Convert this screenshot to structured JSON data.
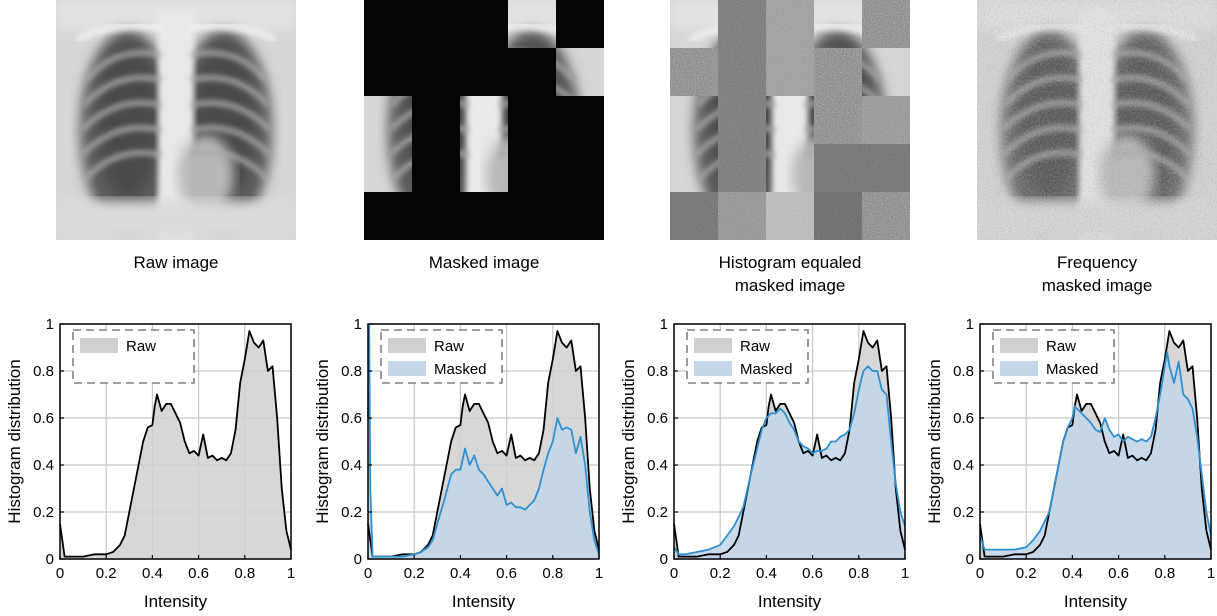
{
  "captions": {
    "raw": "Raw image",
    "masked": "Masked image",
    "histeq_line1": "Histogram equaled",
    "histeq_line2": "masked image",
    "freq_line1": "Frequency",
    "freq_line2": "masked image"
  },
  "colors": {
    "raw_fill": "#d0d0d0",
    "raw_line": "#000000",
    "masked_fill": "#c3d7e8",
    "masked_line": "#2f8fcf",
    "grid": "#c8c8c8"
  },
  "legend": {
    "raw": "Raw",
    "masked": "Masked"
  },
  "chart_data": [
    {
      "type": "area",
      "title": "",
      "xlabel": "Intensity",
      "ylabel": "Histogram distribution",
      "xlim": [
        0,
        1
      ],
      "ylim": [
        0,
        1
      ],
      "xticks": [
        "0",
        "0.2",
        "0.4",
        "0.6",
        "0.8",
        "1"
      ],
      "yticks": [
        "0",
        "0.2",
        "0.4",
        "0.6",
        "0.8",
        "1"
      ],
      "grid": true,
      "legend_position": "top-left",
      "series": [
        {
          "name": "Raw",
          "x": [
            0,
            0.02,
            0.05,
            0.1,
            0.15,
            0.2,
            0.23,
            0.26,
            0.28,
            0.3,
            0.33,
            0.36,
            0.38,
            0.4,
            0.41,
            0.42,
            0.44,
            0.46,
            0.48,
            0.5,
            0.52,
            0.54,
            0.56,
            0.58,
            0.6,
            0.62,
            0.64,
            0.66,
            0.68,
            0.7,
            0.72,
            0.74,
            0.76,
            0.78,
            0.8,
            0.82,
            0.84,
            0.86,
            0.88,
            0.9,
            0.92,
            0.94,
            0.96,
            0.98,
            1.0
          ],
          "y": [
            0.15,
            0.01,
            0.01,
            0.01,
            0.02,
            0.02,
            0.03,
            0.06,
            0.1,
            0.2,
            0.35,
            0.5,
            0.56,
            0.57,
            0.65,
            0.7,
            0.63,
            0.66,
            0.66,
            0.62,
            0.58,
            0.5,
            0.45,
            0.46,
            0.44,
            0.53,
            0.43,
            0.44,
            0.42,
            0.43,
            0.42,
            0.45,
            0.55,
            0.75,
            0.85,
            0.97,
            0.92,
            0.9,
            0.93,
            0.8,
            0.82,
            0.6,
            0.3,
            0.12,
            0.04
          ]
        }
      ]
    },
    {
      "type": "area",
      "title": "",
      "xlabel": "Intensity",
      "ylabel": "Histogram distribution",
      "xlim": [
        0,
        1
      ],
      "ylim": [
        0,
        1
      ],
      "xticks": [
        "0",
        "0.2",
        "0.4",
        "0.6",
        "0.8",
        "1"
      ],
      "yticks": [
        "0",
        "0.2",
        "0.4",
        "0.6",
        "0.8",
        "1"
      ],
      "grid": true,
      "legend_position": "top-left",
      "series": [
        {
          "name": "Raw",
          "x": [
            0,
            0.02,
            0.05,
            0.1,
            0.15,
            0.2,
            0.23,
            0.26,
            0.28,
            0.3,
            0.33,
            0.36,
            0.38,
            0.4,
            0.41,
            0.42,
            0.44,
            0.46,
            0.48,
            0.5,
            0.52,
            0.54,
            0.56,
            0.58,
            0.6,
            0.62,
            0.64,
            0.66,
            0.68,
            0.7,
            0.72,
            0.74,
            0.76,
            0.78,
            0.8,
            0.82,
            0.84,
            0.86,
            0.88,
            0.9,
            0.92,
            0.94,
            0.96,
            0.98,
            1.0
          ],
          "y": [
            0.15,
            0.01,
            0.01,
            0.01,
            0.02,
            0.02,
            0.03,
            0.06,
            0.1,
            0.2,
            0.35,
            0.5,
            0.56,
            0.57,
            0.65,
            0.7,
            0.63,
            0.66,
            0.66,
            0.62,
            0.58,
            0.5,
            0.45,
            0.46,
            0.44,
            0.53,
            0.43,
            0.44,
            0.42,
            0.43,
            0.42,
            0.45,
            0.55,
            0.75,
            0.85,
            0.97,
            0.92,
            0.9,
            0.93,
            0.8,
            0.82,
            0.6,
            0.3,
            0.12,
            0.04
          ]
        },
        {
          "name": "Masked",
          "x": [
            0,
            0.005,
            0.01,
            0.02,
            0.05,
            0.1,
            0.15,
            0.2,
            0.23,
            0.26,
            0.28,
            0.3,
            0.33,
            0.36,
            0.38,
            0.4,
            0.42,
            0.44,
            0.46,
            0.48,
            0.5,
            0.52,
            0.54,
            0.56,
            0.58,
            0.6,
            0.62,
            0.64,
            0.66,
            0.68,
            0.7,
            0.72,
            0.74,
            0.76,
            0.78,
            0.8,
            0.82,
            0.84,
            0.86,
            0.88,
            0.9,
            0.92,
            0.94,
            0.96,
            0.98,
            1.0
          ],
          "y": [
            0.6,
            1.0,
            0.3,
            0.01,
            0.01,
            0.01,
            0.01,
            0.02,
            0.03,
            0.05,
            0.08,
            0.15,
            0.25,
            0.36,
            0.38,
            0.38,
            0.47,
            0.4,
            0.44,
            0.38,
            0.36,
            0.33,
            0.3,
            0.27,
            0.3,
            0.23,
            0.24,
            0.22,
            0.22,
            0.21,
            0.23,
            0.25,
            0.3,
            0.38,
            0.45,
            0.5,
            0.6,
            0.55,
            0.56,
            0.55,
            0.45,
            0.52,
            0.4,
            0.2,
            0.08,
            0.02
          ]
        }
      ]
    },
    {
      "type": "area",
      "title": "",
      "xlabel": "Intensity",
      "ylabel": "Histogram distribution",
      "xlim": [
        0,
        1
      ],
      "ylim": [
        0,
        1
      ],
      "xticks": [
        "0",
        "0.2",
        "0.4",
        "0.6",
        "0.8",
        "1"
      ],
      "yticks": [
        "0",
        "0.2",
        "0.4",
        "0.6",
        "0.8",
        "1"
      ],
      "grid": true,
      "legend_position": "top-left",
      "series": [
        {
          "name": "Raw",
          "x": [
            0,
            0.02,
            0.05,
            0.1,
            0.15,
            0.2,
            0.23,
            0.26,
            0.28,
            0.3,
            0.33,
            0.36,
            0.38,
            0.4,
            0.41,
            0.42,
            0.44,
            0.46,
            0.48,
            0.5,
            0.52,
            0.54,
            0.56,
            0.58,
            0.6,
            0.62,
            0.64,
            0.66,
            0.68,
            0.7,
            0.72,
            0.74,
            0.76,
            0.78,
            0.8,
            0.82,
            0.84,
            0.86,
            0.88,
            0.9,
            0.92,
            0.94,
            0.96,
            0.98,
            1.0
          ],
          "y": [
            0.15,
            0.01,
            0.01,
            0.01,
            0.02,
            0.02,
            0.03,
            0.06,
            0.1,
            0.2,
            0.35,
            0.5,
            0.56,
            0.57,
            0.65,
            0.7,
            0.63,
            0.66,
            0.66,
            0.62,
            0.58,
            0.5,
            0.45,
            0.46,
            0.44,
            0.53,
            0.43,
            0.44,
            0.42,
            0.43,
            0.42,
            0.45,
            0.55,
            0.75,
            0.85,
            0.97,
            0.92,
            0.9,
            0.93,
            0.8,
            0.82,
            0.6,
            0.3,
            0.12,
            0.04
          ]
        },
        {
          "name": "Masked",
          "x": [
            0,
            0.02,
            0.05,
            0.1,
            0.15,
            0.2,
            0.23,
            0.26,
            0.3,
            0.33,
            0.36,
            0.38,
            0.4,
            0.42,
            0.44,
            0.46,
            0.48,
            0.5,
            0.52,
            0.54,
            0.56,
            0.58,
            0.6,
            0.62,
            0.64,
            0.66,
            0.68,
            0.7,
            0.72,
            0.74,
            0.76,
            0.78,
            0.8,
            0.82,
            0.84,
            0.86,
            0.88,
            0.9,
            0.92,
            0.94,
            0.96,
            0.98,
            1.0
          ],
          "y": [
            0.05,
            0.02,
            0.02,
            0.03,
            0.04,
            0.06,
            0.1,
            0.14,
            0.22,
            0.35,
            0.47,
            0.55,
            0.6,
            0.62,
            0.62,
            0.64,
            0.62,
            0.58,
            0.55,
            0.5,
            0.48,
            0.47,
            0.45,
            0.46,
            0.46,
            0.47,
            0.5,
            0.5,
            0.52,
            0.53,
            0.55,
            0.62,
            0.72,
            0.8,
            0.82,
            0.8,
            0.8,
            0.72,
            0.7,
            0.5,
            0.32,
            0.2,
            0.14
          ]
        }
      ]
    },
    {
      "type": "area",
      "title": "",
      "xlabel": "Intensity",
      "ylabel": "Histogram distribution",
      "xlim": [
        0,
        1
      ],
      "ylim": [
        0,
        1
      ],
      "xticks": [
        "0",
        "0.2",
        "0.4",
        "0.6",
        "0.8",
        "1"
      ],
      "yticks": [
        "0",
        "0.2",
        "0.4",
        "0.6",
        "0.8",
        "1"
      ],
      "grid": true,
      "legend_position": "top-left",
      "series": [
        {
          "name": "Raw",
          "x": [
            0,
            0.02,
            0.05,
            0.1,
            0.15,
            0.2,
            0.23,
            0.26,
            0.28,
            0.3,
            0.33,
            0.36,
            0.38,
            0.4,
            0.41,
            0.42,
            0.44,
            0.46,
            0.48,
            0.5,
            0.52,
            0.54,
            0.56,
            0.58,
            0.6,
            0.62,
            0.64,
            0.66,
            0.68,
            0.7,
            0.72,
            0.74,
            0.76,
            0.78,
            0.8,
            0.82,
            0.84,
            0.86,
            0.88,
            0.9,
            0.92,
            0.94,
            0.96,
            0.98,
            1.0
          ],
          "y": [
            0.15,
            0.01,
            0.01,
            0.01,
            0.02,
            0.02,
            0.03,
            0.06,
            0.1,
            0.2,
            0.35,
            0.5,
            0.56,
            0.57,
            0.65,
            0.7,
            0.63,
            0.66,
            0.66,
            0.62,
            0.58,
            0.5,
            0.45,
            0.46,
            0.44,
            0.53,
            0.43,
            0.44,
            0.42,
            0.43,
            0.42,
            0.45,
            0.55,
            0.75,
            0.85,
            0.97,
            0.92,
            0.9,
            0.93,
            0.8,
            0.82,
            0.6,
            0.3,
            0.12,
            0.04
          ]
        },
        {
          "name": "Masked",
          "x": [
            0,
            0.02,
            0.05,
            0.1,
            0.15,
            0.2,
            0.23,
            0.26,
            0.3,
            0.33,
            0.36,
            0.38,
            0.4,
            0.41,
            0.42,
            0.44,
            0.46,
            0.48,
            0.5,
            0.52,
            0.54,
            0.56,
            0.58,
            0.6,
            0.62,
            0.64,
            0.66,
            0.68,
            0.7,
            0.72,
            0.74,
            0.76,
            0.78,
            0.8,
            0.81,
            0.82,
            0.84,
            0.86,
            0.88,
            0.9,
            0.92,
            0.94,
            0.96,
            0.98,
            1.0
          ],
          "y": [
            0.1,
            0.04,
            0.04,
            0.04,
            0.04,
            0.05,
            0.08,
            0.12,
            0.2,
            0.35,
            0.5,
            0.56,
            0.6,
            0.65,
            0.64,
            0.62,
            0.6,
            0.58,
            0.55,
            0.54,
            0.6,
            0.55,
            0.52,
            0.53,
            0.5,
            0.52,
            0.51,
            0.5,
            0.51,
            0.5,
            0.52,
            0.6,
            0.7,
            0.82,
            0.88,
            0.82,
            0.75,
            0.84,
            0.7,
            0.68,
            0.64,
            0.52,
            0.36,
            0.2,
            0.1
          ]
        }
      ]
    }
  ]
}
